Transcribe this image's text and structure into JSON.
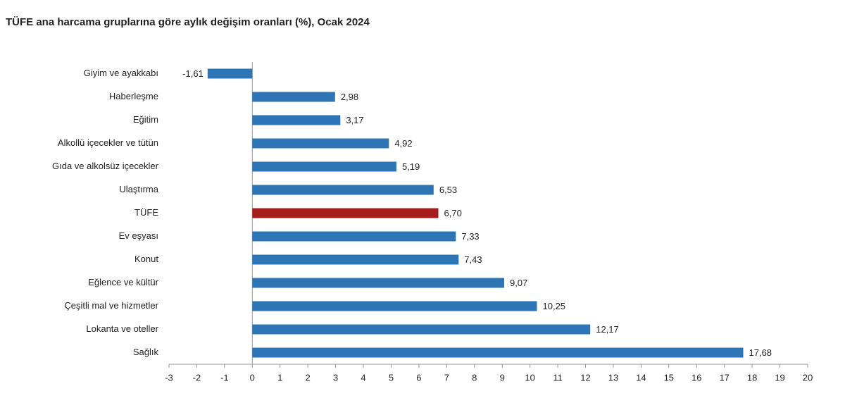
{
  "chart_data": {
    "type": "hbar",
    "title": "TÜFE ana harcama gruplarına göre aylık değişim oranları (%), Ocak 2024",
    "categories": [
      "Giyim ve ayakkabı",
      "Haberleşme",
      "Eğitim",
      "Alkollü içecekler ve tütün",
      "Gıda ve alkolsüz içecekler",
      "Ulaştırma",
      "TÜFE",
      "Ev eşyası",
      "Konut",
      "Eğlence ve kültür",
      "Çeşitli mal ve hizmetler",
      "Lokanta ve oteller",
      "Sağlık"
    ],
    "values": [
      -1.61,
      2.98,
      3.17,
      4.92,
      5.19,
      6.53,
      6.7,
      7.33,
      7.43,
      9.07,
      10.25,
      12.17,
      17.68
    ],
    "value_labels": [
      "-1,61",
      "2,98",
      "3,17",
      "4,92",
      "5,19",
      "6,53",
      "6,70",
      "7,33",
      "7,43",
      "9,07",
      "10,25",
      "12,17",
      "17,68"
    ],
    "colors": [
      "#2e75b6",
      "#2e75b6",
      "#2e75b6",
      "#2e75b6",
      "#2e75b6",
      "#2e75b6",
      "#a61c1c",
      "#2e75b6",
      "#2e75b6",
      "#2e75b6",
      "#2e75b6",
      "#2e75b6",
      "#2e75b6"
    ],
    "xlim": [
      -3,
      20
    ],
    "xticks": [
      -3,
      -2,
      -1,
      0,
      1,
      2,
      3,
      4,
      5,
      6,
      7,
      8,
      9,
      10,
      11,
      12,
      13,
      14,
      15,
      16,
      17,
      18,
      19,
      20
    ]
  }
}
